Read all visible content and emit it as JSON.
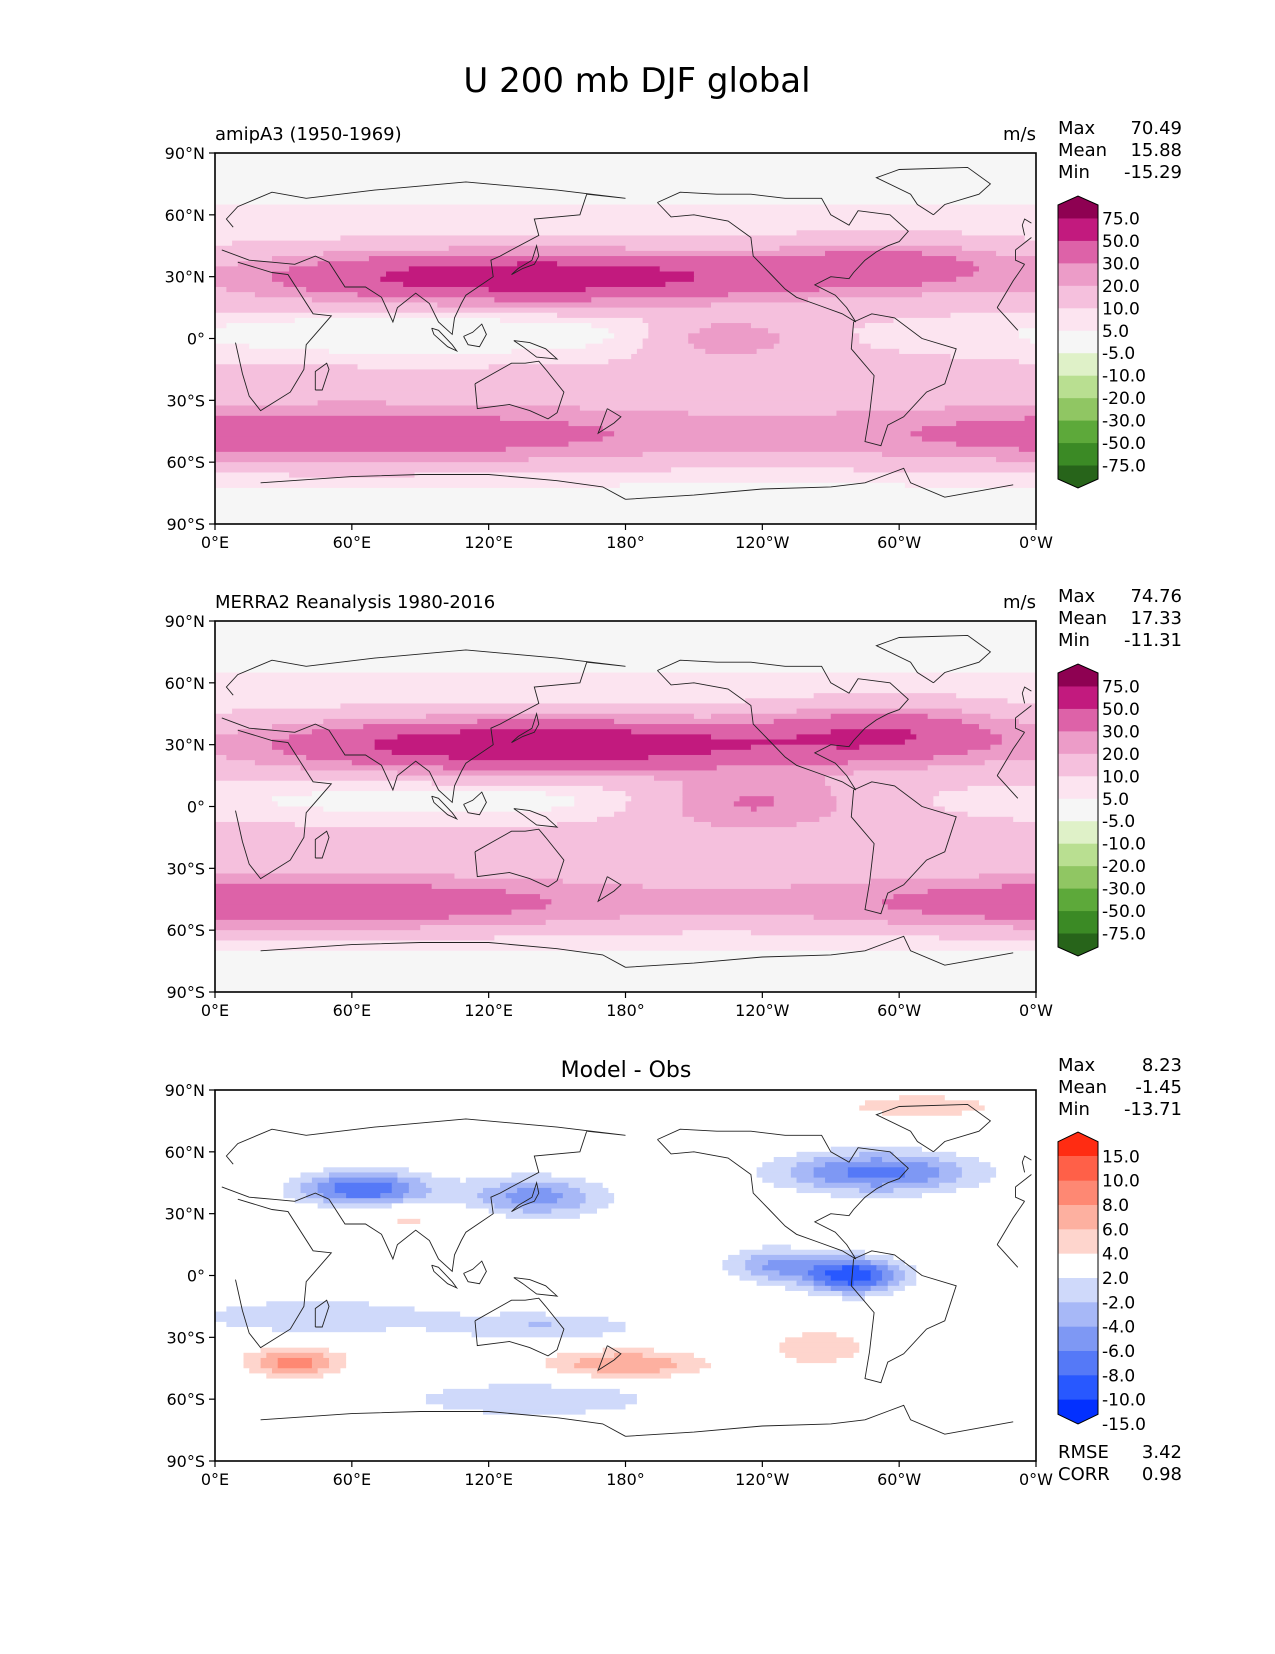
{
  "figure": {
    "title": "U 200 mb DJF global"
  },
  "palettes": {
    "pink_green": [
      "#27641a",
      "#3b8a25",
      "#5da93a",
      "#90c663",
      "#b9df91",
      "#dff1c8",
      "#f6f6f6",
      "#fce4f0",
      "#f5c0dd",
      "#ec9cc8",
      "#dd62a8",
      "#c21a7e",
      "#8e0152"
    ],
    "blue_red": [
      "#0330ff",
      "#2858ff",
      "#5579f7",
      "#7e98f4",
      "#a7b8f7",
      "#cfd9fa",
      "#ffffff",
      "#fed5cd",
      "#fdb0a0",
      "#fe8873",
      "#ff6048",
      "#ff2c12"
    ]
  },
  "chart_data": [
    {
      "type": "heatmap",
      "title": "amipA3 (1950-1969)",
      "units": "m/s",
      "stats": {
        "max_label": "Max",
        "max": "70.49",
        "mean_label": "Mean",
        "mean": "15.88",
        "min_label": "Min",
        "min": "-15.29"
      },
      "xticks": [
        "0°E",
        "60°E",
        "120°E",
        "180°",
        "120°W",
        "60°W",
        "0°W"
      ],
      "xtick_values": [
        0,
        60,
        120,
        180,
        240,
        300,
        360
      ],
      "yticks": [
        "90°N",
        "60°N",
        "30°N",
        "0°",
        "30°S",
        "60°S",
        "90°S"
      ],
      "ytick_values": [
        90,
        60,
        30,
        0,
        -30,
        -60,
        -90
      ],
      "xlim": [
        0,
        360
      ],
      "ylim": [
        -90,
        90
      ],
      "colorbar": {
        "labels": [
          "75.0",
          "50.0",
          "30.0",
          "20.0",
          "10.0",
          "5.0",
          "-5.0",
          "-10.0",
          "-20.0",
          "-30.0",
          "-50.0",
          "-75.0"
        ],
        "extend": "both"
      },
      "field": {
        "kind": "model",
        "max": 70.49,
        "min": -15.29
      }
    },
    {
      "type": "heatmap",
      "title": "MERRA2 Reanalysis 1980-2016",
      "units": "m/s",
      "stats": {
        "max_label": "Max",
        "max": "74.76",
        "mean_label": "Mean",
        "mean": "17.33",
        "min_label": "Min",
        "min": "-11.31"
      },
      "xticks": [
        "0°E",
        "60°E",
        "120°E",
        "180°",
        "120°W",
        "60°W",
        "0°W"
      ],
      "xtick_values": [
        0,
        60,
        120,
        180,
        240,
        300,
        360
      ],
      "yticks": [
        "90°N",
        "60°N",
        "30°N",
        "0°",
        "30°S",
        "60°S",
        "90°S"
      ],
      "ytick_values": [
        90,
        60,
        30,
        0,
        -30,
        -60,
        -90
      ],
      "xlim": [
        0,
        360
      ],
      "ylim": [
        -90,
        90
      ],
      "colorbar": {
        "labels": [
          "75.0",
          "50.0",
          "30.0",
          "20.0",
          "10.0",
          "5.0",
          "-5.0",
          "-10.0",
          "-20.0",
          "-30.0",
          "-50.0",
          "-75.0"
        ],
        "extend": "both"
      },
      "field": {
        "kind": "obs",
        "max": 74.76,
        "min": -11.31
      }
    },
    {
      "type": "heatmap",
      "title": "Model - Obs",
      "units": "",
      "stats": {
        "max_label": "Max",
        "max": "8.23",
        "mean_label": "Mean",
        "mean": "-1.45",
        "min_label": "Min",
        "min": "-13.71"
      },
      "xticks": [
        "0°E",
        "60°E",
        "120°E",
        "180°",
        "120°W",
        "60°W",
        "0°W"
      ],
      "xtick_values": [
        0,
        60,
        120,
        180,
        240,
        300,
        360
      ],
      "yticks": [
        "90°N",
        "60°N",
        "30°N",
        "0°",
        "30°S",
        "60°S",
        "90°S"
      ],
      "ytick_values": [
        90,
        60,
        30,
        0,
        -30,
        -60,
        -90
      ],
      "xlim": [
        0,
        360
      ],
      "ylim": [
        -90,
        90
      ],
      "colorbar": {
        "labels": [
          "15.0",
          "10.0",
          "8.0",
          "6.0",
          "4.0",
          "2.0",
          "-2.0",
          "-4.0",
          "-6.0",
          "-8.0",
          "-10.0",
          "-15.0"
        ],
        "extend": "both"
      },
      "field": {
        "kind": "diff",
        "max": 8.23,
        "min": -13.71
      },
      "metrics": {
        "rmse_label": "RMSE",
        "rmse": "3.42",
        "corr_label": "CORR",
        "corr": "0.98"
      }
    }
  ]
}
